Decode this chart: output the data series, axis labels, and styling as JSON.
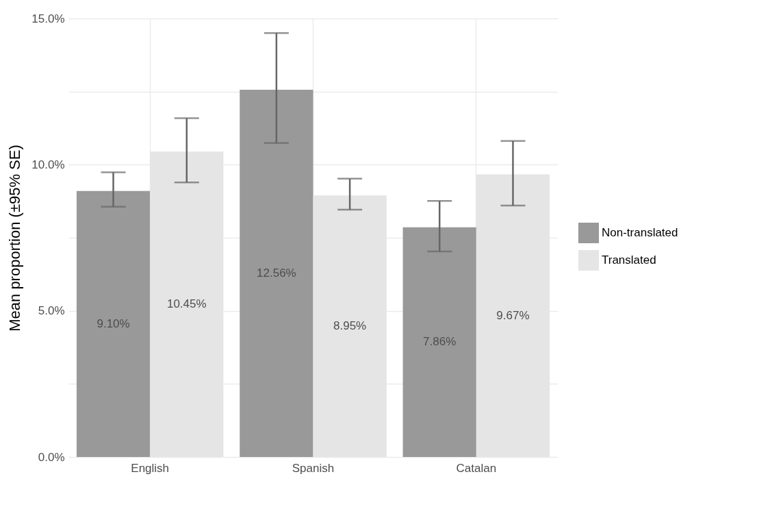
{
  "chart_data": {
    "type": "bar",
    "ylabel": "Mean proportion (±95% SE)",
    "categories": [
      "English",
      "Spanish",
      "Catalan"
    ],
    "series": [
      {
        "name": "Non-translated",
        "color": "#999999",
        "values": [
          9.1,
          12.56,
          7.86
        ],
        "errors": [
          [
            8.56,
            9.74
          ],
          [
            10.74,
            14.5
          ],
          [
            7.03,
            8.76
          ]
        ],
        "value_labels": [
          "9.10%",
          "12.56%",
          "7.86%"
        ]
      },
      {
        "name": "Translated",
        "color": "#e5e5e5",
        "values": [
          10.45,
          8.95,
          9.67
        ],
        "errors": [
          [
            9.39,
            11.59
          ],
          [
            8.46,
            9.52
          ],
          [
            8.6,
            10.81
          ]
        ],
        "value_labels": [
          "10.45%",
          "8.95%",
          "9.67%"
        ]
      }
    ],
    "ylim": [
      0,
      15
    ],
    "yticks": [
      {
        "value": 0,
        "label": "0.0%"
      },
      {
        "value": 2.5,
        "label": null
      },
      {
        "value": 5,
        "label": "5.0%"
      },
      {
        "value": 7.5,
        "label": null
      },
      {
        "value": 10,
        "label": "10.0%"
      },
      {
        "value": 12.5,
        "label": null
      },
      {
        "value": 15,
        "label": "15.0%"
      }
    ],
    "grid": true,
    "legend": "right"
  }
}
